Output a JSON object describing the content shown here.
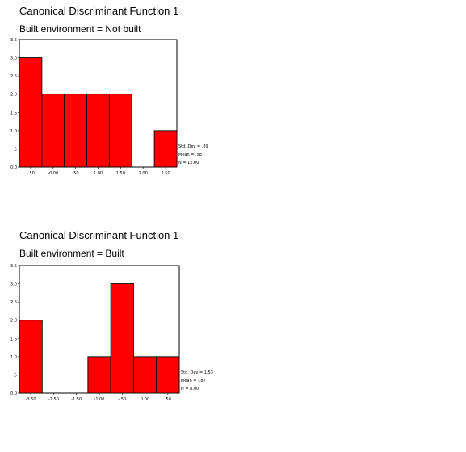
{
  "chart_data": [
    {
      "type": "bar",
      "title": "Canonical Discriminant Function 1",
      "subtitle": "Built environment =  Not built",
      "ylim": [
        0,
        3.5
      ],
      "y_ticks": [
        "3.5",
        "3.0",
        "2.5",
        "2.0",
        "1.5",
        "1.0",
        ".5",
        "0.0"
      ],
      "x_ticks": [
        "-.50",
        "-0.00",
        ".50",
        "1.00",
        "1.50",
        "2.00",
        "2.50"
      ],
      "values": [
        3,
        2,
        2,
        2,
        2,
        0,
        1
      ],
      "bar_color": "#ff0000",
      "stats": [
        "Std. Dev = .89",
        "Mean = .58",
        "N = 12.00"
      ]
    },
    {
      "type": "bar",
      "title": "Canonical Discriminant Function 1",
      "subtitle": "Built environment =  Built",
      "ylim": [
        0,
        3.5
      ],
      "y_ticks": [
        "3.5",
        "3.0",
        "2.5",
        "2.0",
        "1.5",
        "1.0",
        ".5",
        "0.0"
      ],
      "x_ticks": [
        "-3.50",
        "-2.50",
        "-1.50",
        "-1.00",
        "-.50",
        "0.00",
        ".50"
      ],
      "values": [
        2,
        0,
        0,
        1,
        3,
        1,
        1
      ],
      "bar_color": "#ff0000",
      "stats": [
        "Std. Dev = 1.53",
        "Mean = -.87",
        "N = 8.00"
      ]
    }
  ]
}
